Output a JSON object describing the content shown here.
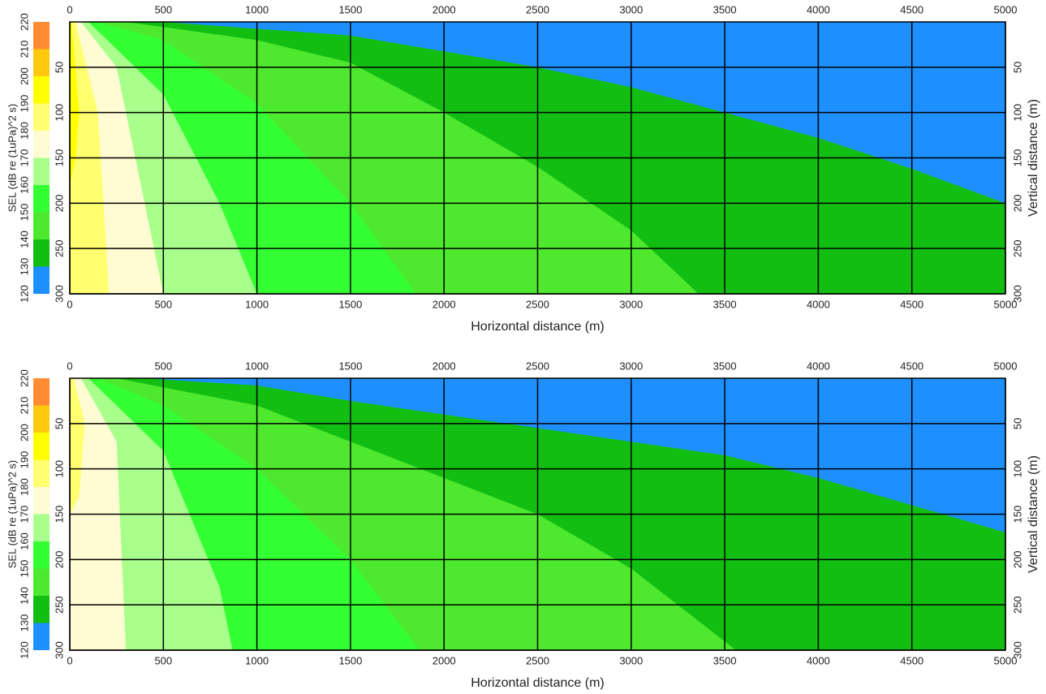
{
  "chart_data": [
    {
      "type": "contour",
      "xlabel": "Horizontal distance (m)",
      "ylabel_right": "Vertical distance (m)",
      "xlim": [
        0,
        5000
      ],
      "xticks": [
        0,
        500,
        1000,
        1500,
        2000,
        2500,
        3000,
        3500,
        4000,
        4500,
        5000
      ],
      "ylim": [
        0,
        300
      ],
      "yticks": [
        50,
        100,
        150,
        200,
        250,
        300
      ],
      "grid": true,
      "colorbar": {
        "label": "SEL (dB re (1uPa)^2 s)",
        "levels": [
          120,
          130,
          140,
          150,
          160,
          170,
          180,
          190,
          200,
          210,
          220
        ],
        "colors": [
          "#1e8fff",
          "#12be12",
          "#4ee82e",
          "#33ff33",
          "#a8ff8c",
          "#fffbd2",
          "#ffff70",
          "#ffff00",
          "#ffc90e",
          "#ff8c32"
        ]
      },
      "contours": [
        {
          "level": 130,
          "x": [
            500,
            1500,
            2500,
            3000,
            3500,
            4000,
            4500,
            5000
          ],
          "y": [
            0,
            15,
            50,
            72,
            100,
            128,
            162,
            200
          ]
        },
        {
          "level": 140,
          "x": [
            300,
            1000,
            1500,
            2000,
            2500,
            3000,
            3360
          ],
          "y": [
            0,
            20,
            45,
            100,
            160,
            230,
            300
          ]
        },
        {
          "level": 150,
          "x": [
            150,
            500,
            1000,
            1500,
            1850
          ],
          "y": [
            0,
            20,
            90,
            200,
            300
          ]
        },
        {
          "level": 160,
          "x": [
            100,
            500,
            800,
            1000
          ],
          "y": [
            0,
            80,
            200,
            300
          ]
        },
        {
          "level": 170,
          "x": [
            60,
            250,
            400,
            500
          ],
          "y": [
            0,
            50,
            200,
            300
          ]
        },
        {
          "level": 180,
          "x": [
            30,
            150,
            210
          ],
          "y": [
            0,
            100,
            300
          ]
        },
        {
          "level": 190,
          "x": [
            10,
            50,
            30,
            0
          ],
          "y": [
            0,
            100,
            150,
            180
          ]
        }
      ]
    },
    {
      "type": "contour",
      "xlabel": "Horizontal distance (m)",
      "ylabel_right": "Vertical distance (m)",
      "xlim": [
        0,
        5000
      ],
      "xticks": [
        0,
        500,
        1000,
        1500,
        2000,
        2500,
        3000,
        3500,
        4000,
        4500,
        5000
      ],
      "ylim": [
        0,
        300
      ],
      "yticks": [
        50,
        100,
        150,
        200,
        250,
        300
      ],
      "grid": true,
      "colorbar": {
        "label": "SEL (dB re (1uPa)^2 s)",
        "levels": [
          120,
          130,
          140,
          150,
          160,
          170,
          180,
          190,
          200,
          210,
          220
        ],
        "colors": [
          "#1e8fff",
          "#12be12",
          "#4ee82e",
          "#33ff33",
          "#a8ff8c",
          "#fffbd2",
          "#ffff70",
          "#ffff00",
          "#ffc90e",
          "#ff8c32"
        ]
      },
      "contours": [
        {
          "level": 130,
          "x": [
            400,
            1000,
            1500,
            2500,
            3500,
            4000,
            4500,
            5000
          ],
          "y": [
            0,
            8,
            25,
            55,
            85,
            110,
            140,
            170
          ]
        },
        {
          "level": 140,
          "x": [
            250,
            1000,
            1500,
            2000,
            2500,
            3000,
            3560
          ],
          "y": [
            0,
            30,
            70,
            110,
            150,
            210,
            300
          ]
        },
        {
          "level": 150,
          "x": [
            150,
            500,
            1000,
            1500,
            1870
          ],
          "y": [
            0,
            30,
            100,
            200,
            300
          ]
        },
        {
          "level": 160,
          "x": [
            100,
            500,
            800,
            870
          ],
          "y": [
            0,
            80,
            230,
            300
          ]
        },
        {
          "level": 170,
          "x": [
            60,
            250,
            300
          ],
          "y": [
            0,
            70,
            300
          ]
        },
        {
          "level": 180,
          "x": [
            20,
            80,
            50,
            0
          ],
          "y": [
            0,
            50,
            130,
            150
          ]
        }
      ]
    }
  ]
}
